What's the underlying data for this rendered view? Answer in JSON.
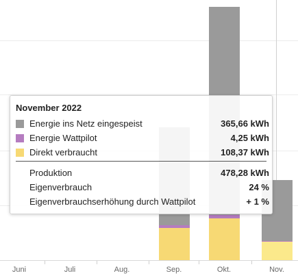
{
  "colors": {
    "grid_in": "#9a9a9a",
    "wattpilot": "#b57cc0",
    "direct": "#f7d974",
    "nov_direct": "#fbe98b"
  },
  "chart_data": {
    "type": "bar",
    "stacked": true,
    "categories": [
      "Juni",
      "Juli",
      "Aug.",
      "Sep.",
      "Okt.",
      "Nov."
    ],
    "series": [
      {
        "name": "Direkt verbraucht",
        "values": [
          null,
          null,
          null,
          190,
          250,
          108.37
        ]
      },
      {
        "name": "Energie Wattpilot",
        "values": [
          null,
          null,
          null,
          20,
          18,
          4.25
        ]
      },
      {
        "name": "Energie ins Netz eingespeist",
        "values": [
          null,
          null,
          null,
          580,
          1240,
          365.66
        ]
      }
    ],
    "ylim": [
      0,
      1550
    ],
    "grid": true
  },
  "tooltip": {
    "title": "November 2022",
    "rows": [
      {
        "label": "Energie ins Netz eingespeist",
        "value": "365,66 kWh",
        "icon": "gray-square-icon"
      },
      {
        "label": "Energie Wattpilot",
        "value": "4,25 kWh",
        "icon": "purple-square-icon"
      },
      {
        "label": "Direkt verbraucht",
        "value": "108,37 kWh",
        "icon": "yellow-square-icon"
      }
    ],
    "summary": [
      {
        "label": "Produktion",
        "value": "478,28 kWh"
      },
      {
        "label": "Eigenverbrauch",
        "value": "24 %"
      },
      {
        "label": "Eigenverbrauchserhöhung durch Wattpilot",
        "value": "+ 1 %"
      }
    ]
  }
}
